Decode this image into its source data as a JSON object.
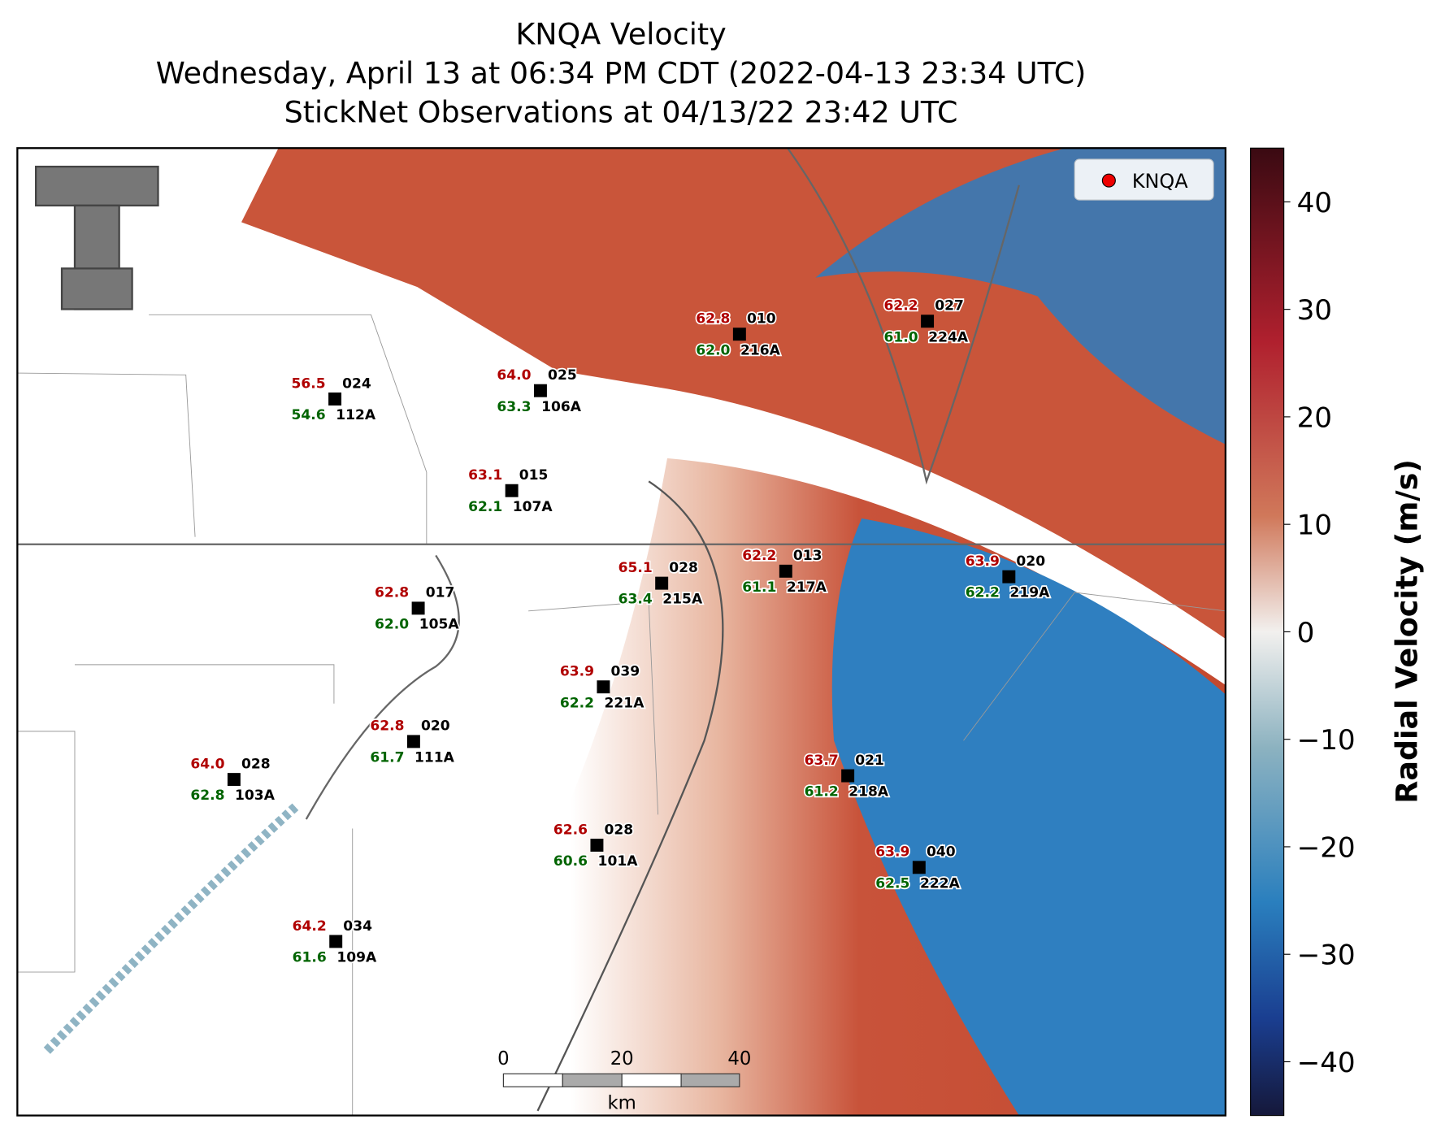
{
  "title": [
    "KNQA Velocity",
    "Wednesday, April 13 at 06:34 PM CDT (2022-04-13 23:34 UTC)",
    "StickNet Observations at 04/13/22 23:42 UTC"
  ],
  "legend": "KNQA",
  "scale_bar": {
    "labels": [
      "0",
      "20",
      "40"
    ],
    "unit": "km"
  },
  "colorbar": {
    "label": "Radial Velocity (m/s)",
    "lim": [
      -45,
      45
    ],
    "ticks": [
      40,
      30,
      20,
      10,
      0,
      {
        "value": -10,
        "label": "−10"
      },
      {
        "value": -20,
        "label": "−20"
      },
      {
        "value": -30,
        "label": "−30"
      },
      {
        "value": -40,
        "label": "−40"
      }
    ]
  },
  "stations": [
    {
      "temperature": "56.5",
      "station": "024",
      "dewpoint": "54.6",
      "probe": "112A"
    },
    {
      "temperature": "64.0",
      "station": "025",
      "dewpoint": "63.3",
      "probe": "106A"
    },
    {
      "temperature": "62.8",
      "station": "010",
      "dewpoint": "62.0",
      "probe": "216A"
    },
    {
      "temperature": "62.2",
      "station": "027",
      "dewpoint": "61.0",
      "probe": "224A"
    },
    {
      "temperature": "63.1",
      "station": "015",
      "dewpoint": "62.1",
      "probe": "107A"
    },
    {
      "temperature": "62.8",
      "station": "017",
      "dewpoint": "62.0",
      "probe": "105A"
    },
    {
      "temperature": "65.1",
      "station": "028",
      "dewpoint": "63.4",
      "probe": "215A"
    },
    {
      "temperature": "62.2",
      "station": "013",
      "dewpoint": "61.1",
      "probe": "217A"
    },
    {
      "temperature": "63.9",
      "station": "020",
      "dewpoint": "62.2",
      "probe": "219A"
    },
    {
      "temperature": "63.9",
      "station": "039",
      "dewpoint": "62.2",
      "probe": "221A"
    },
    {
      "temperature": "62.8",
      "station": "020",
      "dewpoint": "61.7",
      "probe": "111A"
    },
    {
      "temperature": "64.0",
      "station": "028",
      "dewpoint": "62.8",
      "probe": "103A"
    },
    {
      "temperature": "63.7",
      "station": "021",
      "dewpoint": "61.2",
      "probe": "218A"
    },
    {
      "temperature": "62.6",
      "station": "028",
      "dewpoint": "60.6",
      "probe": "101A"
    },
    {
      "temperature": "63.9",
      "station": "040",
      "dewpoint": "62.5",
      "probe": "222A"
    },
    {
      "temperature": "64.2",
      "station": "034",
      "dewpoint": "61.6",
      "probe": "109A"
    }
  ]
}
